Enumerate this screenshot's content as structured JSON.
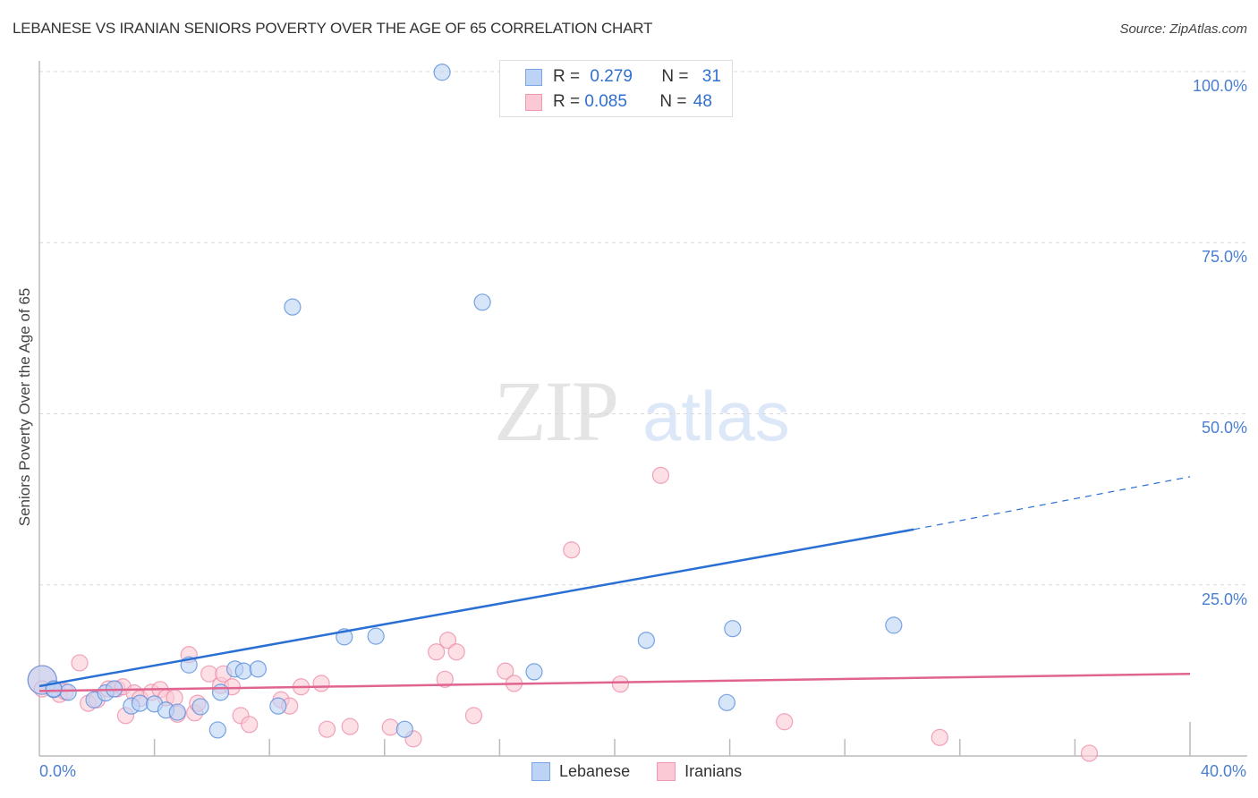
{
  "header": {
    "title": "LEBANESE VS IRANIAN SENIORS POVERTY OVER THE AGE OF 65 CORRELATION CHART",
    "source": "Source: ZipAtlas.com"
  },
  "stats_legend": [
    {
      "series": "Lebanese",
      "r_label": "R =",
      "r_value": "0.279",
      "n_label": "N =",
      "n_value": "31",
      "color": "#bcd3f5"
    },
    {
      "series": "Iranians",
      "r_label": "R =",
      "r_value": "0.085",
      "n_label": "N =",
      "n_value": "48",
      "color": "#fbc9d6"
    }
  ],
  "axes": {
    "y_label": "Seniors Poverty Over the Age of 65",
    "y_ticks": [
      "100.0%",
      "75.0%",
      "50.0%",
      "25.0%"
    ],
    "x_ticks": [
      "0.0%",
      "40.0%"
    ]
  },
  "legend": {
    "items": [
      {
        "label": "Lebanese",
        "color": "#bcd3f5"
      },
      {
        "label": "Iranians",
        "color": "#fbc9d6"
      }
    ]
  },
  "watermark": {
    "zip": "ZIP",
    "atlas": "atlas"
  },
  "chart_data": {
    "type": "scatter",
    "title": "LEBANESE VS IRANIAN SENIORS POVERTY OVER THE AGE OF 65 CORRELATION CHART",
    "xlabel": "",
    "ylabel": "Seniors Poverty Over the Age of 65",
    "xlim": [
      0,
      40
    ],
    "ylim": [
      0,
      100
    ],
    "x_unit": "%",
    "y_unit": "%",
    "grid": true,
    "legend_position": "bottom",
    "series": [
      {
        "name": "Lebanese",
        "color": "#4a86e0",
        "fill": "#bcd3f5",
        "r": 0.279,
        "n": 31,
        "trend": {
          "x0": 0,
          "y0": 10.2,
          "x1": 30.4,
          "y1": 33.1,
          "dashed_to": {
            "x": 40,
            "y": 40.8
          }
        },
        "points": [
          [
            0.1,
            11.1
          ],
          [
            0.5,
            9.7
          ],
          [
            1.0,
            9.3
          ],
          [
            1.9,
            8.2
          ],
          [
            2.3,
            9.2
          ],
          [
            2.6,
            9.8
          ],
          [
            3.2,
            7.3
          ],
          [
            3.5,
            7.7
          ],
          [
            4.0,
            7.6
          ],
          [
            4.4,
            6.7
          ],
          [
            4.8,
            6.4
          ],
          [
            5.2,
            13.3
          ],
          [
            5.6,
            7.2
          ],
          [
            6.2,
            3.8
          ],
          [
            6.3,
            9.3
          ],
          [
            6.8,
            12.7
          ],
          [
            7.1,
            12.4
          ],
          [
            7.6,
            12.7
          ],
          [
            8.3,
            7.3
          ],
          [
            8.8,
            65.6
          ],
          [
            10.6,
            17.4
          ],
          [
            11.7,
            17.5
          ],
          [
            12.7,
            3.9
          ],
          [
            14.0,
            99.9
          ],
          [
            15.4,
            66.3
          ],
          [
            17.2,
            12.3
          ],
          [
            21.1,
            16.9
          ],
          [
            23.9,
            7.8
          ],
          [
            24.1,
            18.6
          ],
          [
            29.7,
            19.1
          ],
          [
            0.5,
            9.8
          ]
        ]
      },
      {
        "name": "Iranians",
        "color": "#e8799a",
        "fill": "#fbc9d6",
        "r": 0.085,
        "n": 48,
        "trend": {
          "x0": 0,
          "y0": 9.5,
          "x1": 40,
          "y1": 12.0
        },
        "points": [
          [
            0.1,
            11.1
          ],
          [
            0.7,
            9.0
          ],
          [
            0.9,
            9.4
          ],
          [
            1.4,
            13.6
          ],
          [
            1.7,
            7.7
          ],
          [
            2.0,
            8.2
          ],
          [
            2.4,
            9.8
          ],
          [
            2.7,
            9.8
          ],
          [
            2.9,
            10.1
          ],
          [
            3.0,
            5.9
          ],
          [
            3.3,
            9.2
          ],
          [
            3.5,
            8.4
          ],
          [
            3.9,
            9.3
          ],
          [
            4.2,
            9.7
          ],
          [
            4.4,
            8.5
          ],
          [
            4.7,
            8.5
          ],
          [
            4.8,
            6.1
          ],
          [
            5.2,
            14.8
          ],
          [
            5.4,
            6.3
          ],
          [
            5.5,
            7.7
          ],
          [
            5.9,
            12.0
          ],
          [
            6.3,
            10.3
          ],
          [
            6.4,
            12.0
          ],
          [
            6.7,
            10.1
          ],
          [
            7.0,
            5.9
          ],
          [
            7.3,
            4.6
          ],
          [
            8.4,
            8.2
          ],
          [
            8.7,
            7.3
          ],
          [
            9.1,
            10.1
          ],
          [
            9.8,
            10.6
          ],
          [
            10.0,
            3.9
          ],
          [
            10.8,
            4.3
          ],
          [
            12.2,
            4.2
          ],
          [
            13.0,
            2.5
          ],
          [
            13.8,
            15.2
          ],
          [
            14.1,
            11.2
          ],
          [
            14.2,
            16.9
          ],
          [
            14.5,
            15.2
          ],
          [
            15.1,
            5.9
          ],
          [
            16.2,
            12.4
          ],
          [
            16.5,
            10.6
          ],
          [
            18.5,
            30.1
          ],
          [
            20.2,
            10.5
          ],
          [
            21.6,
            41.0
          ],
          [
            25.9,
            5.0
          ],
          [
            31.3,
            2.7
          ],
          [
            36.5,
            0.4
          ],
          [
            0.1,
            9.8
          ]
        ]
      }
    ]
  }
}
